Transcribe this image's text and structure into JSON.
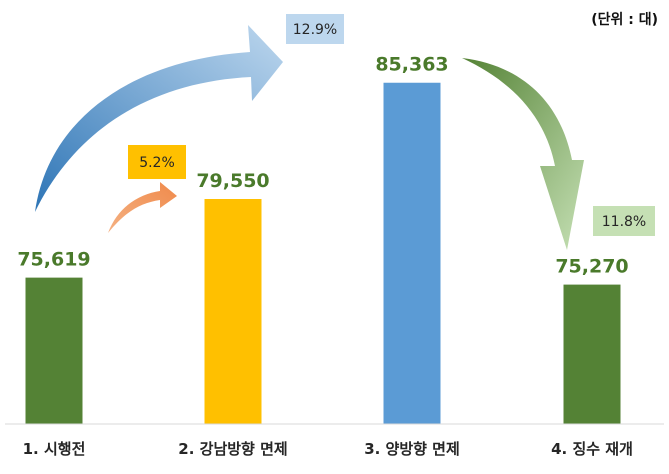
{
  "unit_label": "(단위 : 대)",
  "chart_data": {
    "type": "bar",
    "title": "",
    "xlabel": "",
    "ylabel": "",
    "categories": [
      "1. 시행전",
      "2. 강남방향 면제",
      "3. 양방향 면제",
      "4. 징수 재개"
    ],
    "values": [
      75619,
      79550,
      85363,
      75270
    ],
    "value_labels": [
      "75,619",
      "79,550",
      "85,363",
      "75,270"
    ],
    "colors": [
      "#548235",
      "#ffc000",
      "#5b9bd5",
      "#548235"
    ],
    "grid": false,
    "annotations": [
      {
        "label": "5.2%",
        "from": "1. 시행전",
        "to": "2. 강남방향 면제",
        "color": "#f4b183",
        "box_color": "#ffc000"
      },
      {
        "label": "12.9%",
        "from": "1. 시행전",
        "to": "3. 양방향 면제",
        "color": "#5b9bd5",
        "box_color": "#bdd7ee"
      },
      {
        "label": "11.8%",
        "from": "3. 양방향 면제",
        "to": "4. 징수 재개",
        "color": "#70ad47",
        "box_color": "#c5e0b4"
      }
    ]
  }
}
